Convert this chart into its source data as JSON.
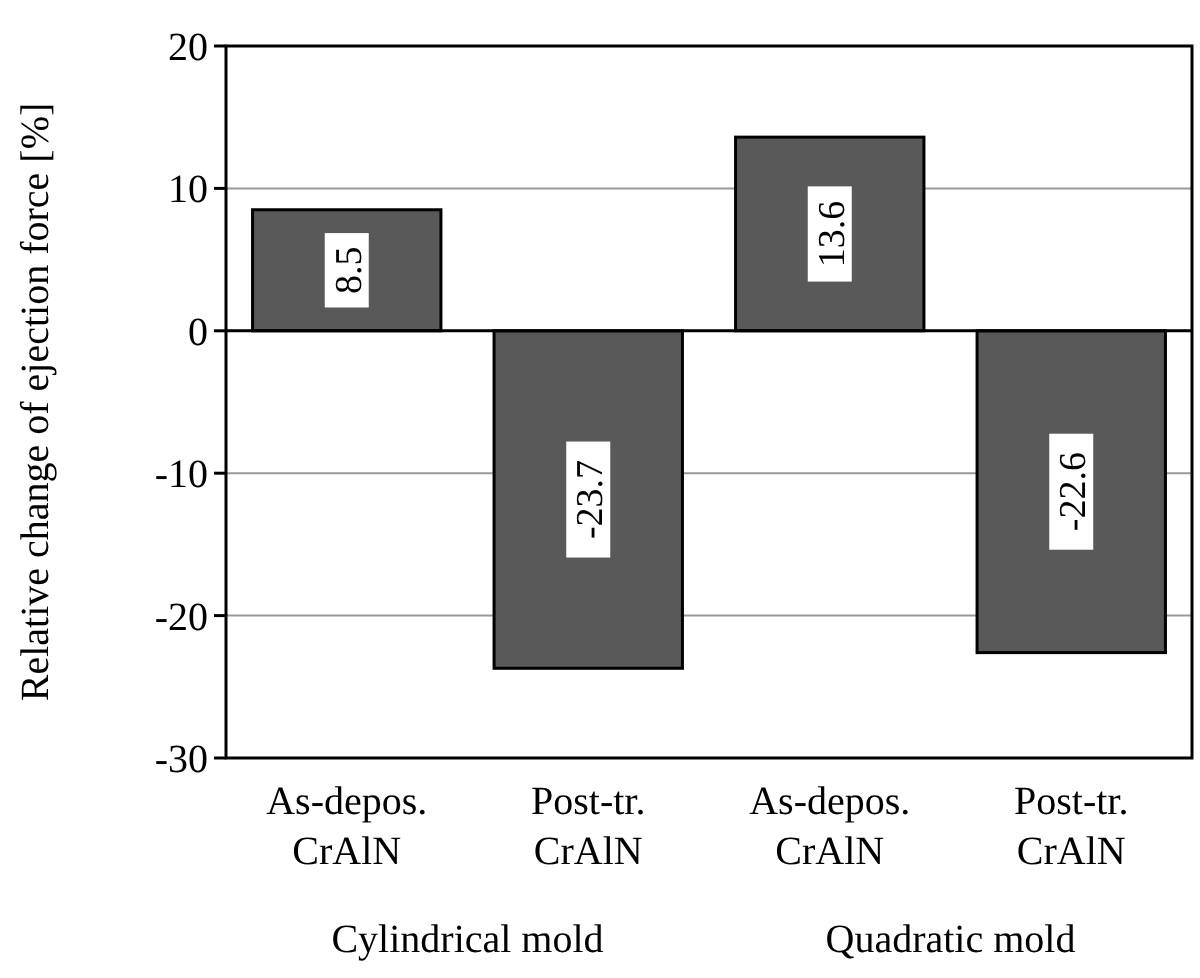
{
  "chart_data": {
    "type": "bar",
    "ylabel": "Relative change of ejection force [%]",
    "categories": [
      "As-depos. CrAlN",
      "Post-tr. CrAlN",
      "As-depos. CrAlN",
      "Post-tr. CrAlN"
    ],
    "values": [
      8.5,
      -23.7,
      13.6,
      -22.6
    ],
    "color": "#595959",
    "ylim": [
      -30,
      20
    ],
    "yticks": [
      -30,
      -20,
      -10,
      0,
      10,
      20
    ],
    "grid": "y",
    "data_labels": true,
    "annotations": [
      "Cylindrical mold",
      "Quadratic mold"
    ]
  }
}
